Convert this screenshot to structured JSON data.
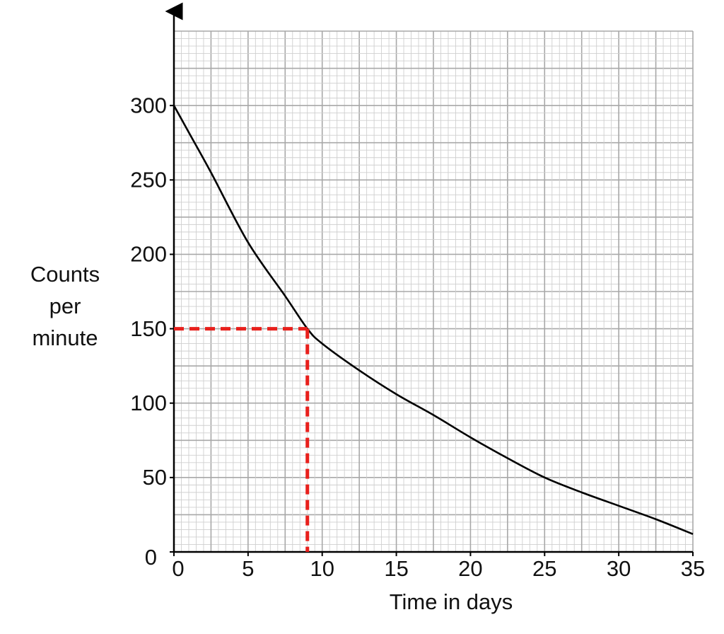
{
  "chart_data": {
    "type": "line",
    "xlabel": "Time in days",
    "ylabel": [
      "Counts",
      "per",
      "minute"
    ],
    "x": [
      0,
      1,
      2.5,
      5,
      7.5,
      9,
      10,
      12.5,
      15,
      17.5,
      20,
      22.5,
      25,
      27.5,
      30,
      32.5,
      35
    ],
    "y": [
      300,
      282,
      255,
      208,
      172,
      150,
      140,
      122,
      106,
      92,
      77,
      63,
      50,
      40,
      31,
      22,
      12
    ],
    "color": "#000000",
    "xlim": [
      0,
      35
    ],
    "ylim": [
      0,
      350
    ],
    "xticks": [
      0,
      5,
      10,
      15,
      20,
      25,
      30,
      35
    ],
    "yticks": [
      0,
      50,
      100,
      150,
      200,
      250,
      300
    ],
    "grid": true,
    "reading": {
      "x": 9,
      "y": 150,
      "color": "#e8201c"
    }
  }
}
